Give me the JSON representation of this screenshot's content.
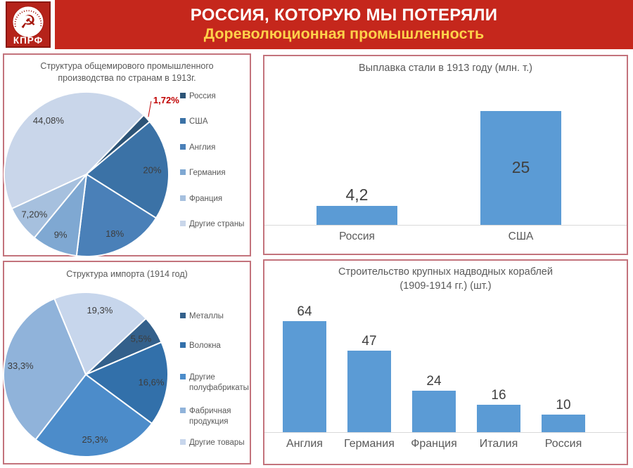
{
  "header": {
    "title": "РОССИЯ, КОТОРУЮ МЫ ПОТЕРЯЛИ",
    "subtitle": "Дореволюционная промышленность",
    "logo_text": "КПРФ",
    "logo_icon": "☭"
  },
  "colors": {
    "banner_red": "#c5271c",
    "subtitle_yellow": "#ffd24a",
    "panel_border": "#c3737c",
    "bar_blue": "#5b9bd5",
    "highlight_red": "#c00000",
    "text_gray": "#595959"
  },
  "chart_data": [
    {
      "type": "pie",
      "title": "Структура общемирового промышленного производства по странам в 1913г.",
      "rotation_deg": 44,
      "legend_position": "right",
      "slices": [
        {
          "label": "Россия",
          "value": 1.72,
          "display": "1,72%",
          "color": "#2d5477",
          "external_label": true,
          "label_color": "#c00000"
        },
        {
          "label": "США",
          "value": 20,
          "display": "20%",
          "color": "#3b72a6"
        },
        {
          "label": "Англия",
          "value": 18,
          "display": "18%",
          "color": "#4a80b8"
        },
        {
          "label": "Германия",
          "value": 9,
          "display": "9%",
          "color": "#7fa8d2"
        },
        {
          "label": "Франция",
          "value": 7.2,
          "display": "7,20%",
          "color": "#a6c0de"
        },
        {
          "label": "Другие страны",
          "value": 44.08,
          "display": "44,08%",
          "color": "#c9d6ea"
        }
      ]
    },
    {
      "type": "bar",
      "title": "Выплавка стали в 1913 году (млн. т.)",
      "ymax": 25,
      "bar_color": "#5b9bd5",
      "baseline_color": "#d9d9d9",
      "grid": false,
      "bars": [
        {
          "label": "Россия",
          "value": 4.2,
          "display": "4,2",
          "label_pos": "outside"
        },
        {
          "label": "США",
          "value": 25,
          "display": "25",
          "label_pos": "inside"
        }
      ]
    },
    {
      "type": "pie",
      "title": "Структура импорта (1914 год)",
      "rotation_deg": 47,
      "legend_position": "right",
      "slices": [
        {
          "label": "Металлы",
          "value": 5.5,
          "display": "5,5%",
          "color": "#33608b"
        },
        {
          "label": "Волокна",
          "value": 16.6,
          "display": "16,6%",
          "color": "#3270aa"
        },
        {
          "label": "Другие полуфабрикаты",
          "value": 25.3,
          "display": "25,3%",
          "color": "#4c8cca"
        },
        {
          "label": "Фабричная продукция",
          "value": 33.3,
          "display": "33,3%",
          "color": "#90b3da"
        },
        {
          "label": "Другие товары",
          "value": 19.3,
          "display": "19,3%",
          "color": "#c7d6ec"
        }
      ]
    },
    {
      "type": "bar",
      "title": "Строительство крупных надводных кораблей (1909-1914 гг.) (шт.)",
      "ymax": 64,
      "bar_color": "#5b9bd5",
      "baseline_color": "#d9d9d9",
      "grid": false,
      "bars": [
        {
          "label": "Англия",
          "value": 64,
          "display": "64",
          "label_pos": "outside"
        },
        {
          "label": "Германия",
          "value": 47,
          "display": "47",
          "label_pos": "outside"
        },
        {
          "label": "Франция",
          "value": 24,
          "display": "24",
          "label_pos": "outside"
        },
        {
          "label": "Италия",
          "value": 16,
          "display": "16",
          "label_pos": "outside"
        },
        {
          "label": "Россия",
          "value": 10,
          "display": "10",
          "label_pos": "outside"
        }
      ]
    }
  ]
}
